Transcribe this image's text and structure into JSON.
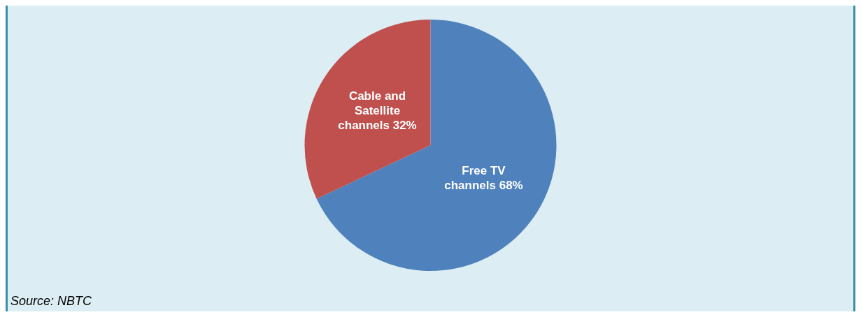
{
  "chart_data": {
    "type": "pie",
    "categories": [
      "Free TV channels",
      "Cable and Satellite channels"
    ],
    "values": [
      68,
      32
    ],
    "colors": [
      "#4f81bd",
      "#c0504d"
    ],
    "value_labels": [
      "68%",
      "32%"
    ],
    "legend": false,
    "annotations": [
      "Source: NBTC"
    ]
  }
}
